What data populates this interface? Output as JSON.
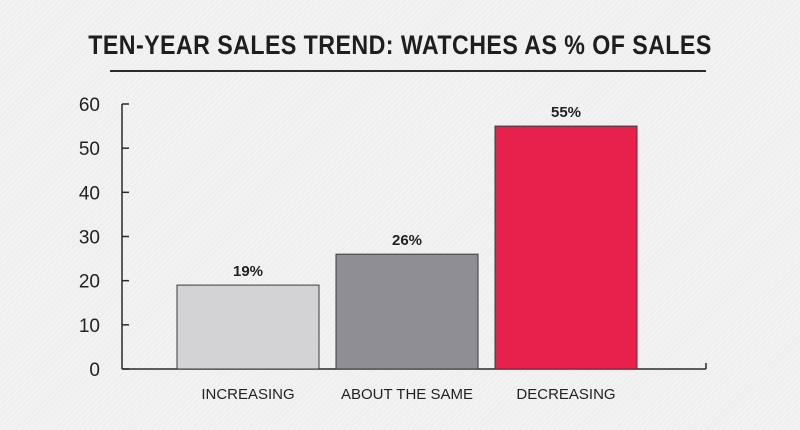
{
  "chart_data": {
    "type": "bar",
    "title": "TEN-YEAR SALES TREND: WATCHES AS % OF SALES",
    "xlabel": "",
    "ylabel": "",
    "ylim": [
      0,
      60
    ],
    "yticks": [
      0,
      10,
      20,
      30,
      40,
      50,
      60
    ],
    "categories": [
      "INCREASING",
      "ABOUT THE SAME",
      "DECREASING"
    ],
    "values": [
      19,
      26,
      55
    ],
    "data_labels": [
      "19%",
      "26%",
      "55%"
    ],
    "colors": [
      "#d3d3d5",
      "#8f8f93",
      "#e8204c"
    ],
    "grid": false
  }
}
